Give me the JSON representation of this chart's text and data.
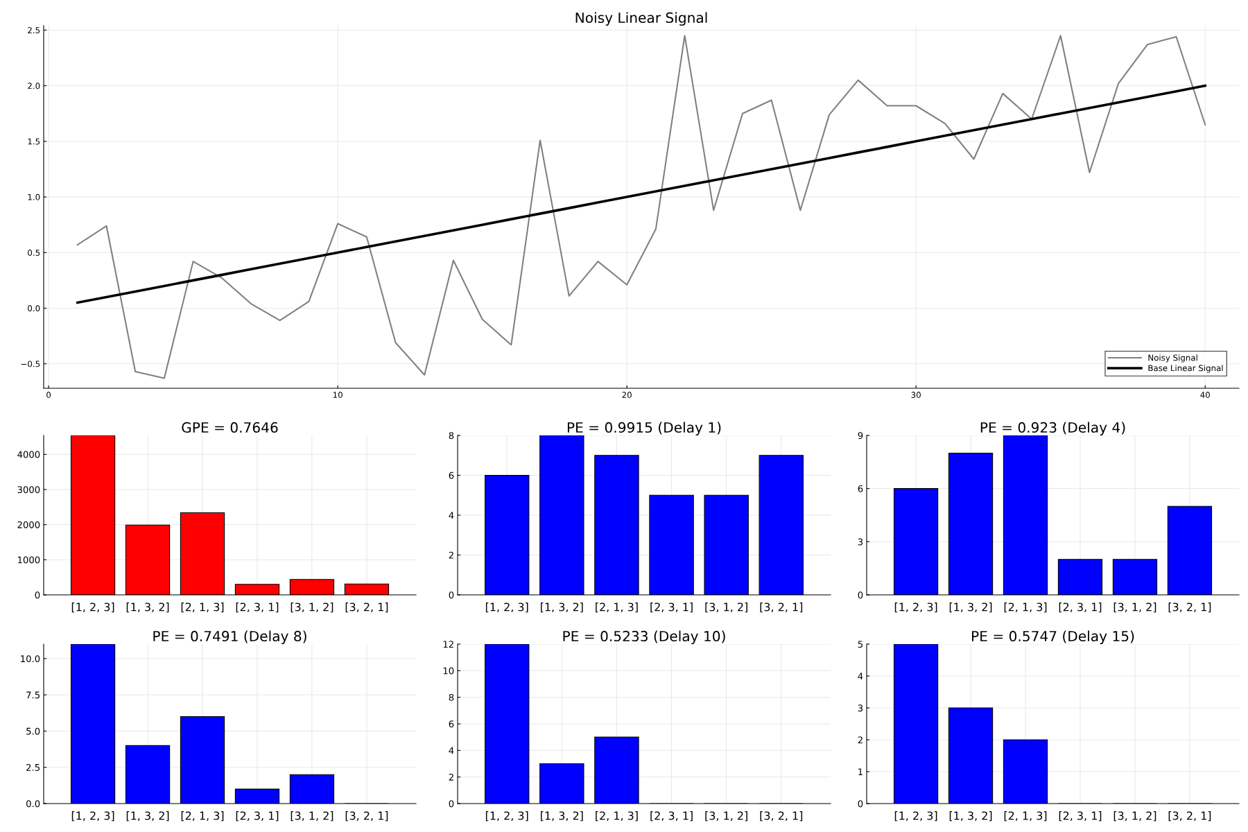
{
  "chart_data": [
    {
      "type": "line",
      "title": "Noisy Linear Signal",
      "x": [
        1,
        2,
        3,
        4,
        5,
        6,
        7,
        8,
        9,
        10,
        11,
        12,
        13,
        14,
        15,
        16,
        17,
        18,
        19,
        20,
        21,
        22,
        23,
        24,
        25,
        26,
        27,
        28,
        29,
        30,
        31,
        32,
        33,
        34,
        35,
        36,
        37,
        38,
        39,
        40
      ],
      "series": [
        {
          "name": "Noisy Signal",
          "color": "#808080",
          "values": [
            0.57,
            0.74,
            -0.57,
            -0.63,
            0.42,
            0.27,
            0.04,
            -0.11,
            0.06,
            0.76,
            0.64,
            -0.31,
            -0.6,
            0.43,
            -0.1,
            -0.33,
            1.51,
            0.11,
            0.42,
            0.21,
            0.71,
            2.45,
            0.88,
            1.75,
            1.87,
            0.88,
            1.74,
            2.05,
            1.82,
            1.82,
            1.66,
            1.34,
            1.93,
            1.7,
            2.45,
            1.22,
            2.02,
            2.37,
            2.44,
            1.65
          ]
        },
        {
          "name": "Base Linear Signal",
          "color": "#000000",
          "values": [
            0.05,
            0.1,
            0.15,
            0.2,
            0.25,
            0.3,
            0.35,
            0.4,
            0.45,
            0.5,
            0.55,
            0.6,
            0.65,
            0.7,
            0.75,
            0.8,
            0.85,
            0.9,
            0.95,
            1.0,
            1.05,
            1.1,
            1.15,
            1.2,
            1.25,
            1.3,
            1.35,
            1.4,
            1.45,
            1.5,
            1.55,
            1.6,
            1.65,
            1.7,
            1.75,
            1.8,
            1.85,
            1.9,
            1.95,
            2.0
          ]
        }
      ],
      "xlim": [
        -0.17,
        41.17
      ],
      "xticks": [
        0,
        10,
        20,
        30,
        40
      ],
      "ylim": [
        -0.72,
        2.54
      ],
      "yticks": [
        {
          "value": -0.5,
          "label": "−0.5"
        },
        {
          "value": 0,
          "label": "0.0"
        },
        {
          "value": 0.5,
          "label": "0.5"
        },
        {
          "value": 1,
          "label": "1.0"
        },
        {
          "value": 1.5,
          "label": "1.5"
        },
        {
          "value": 2,
          "label": "2.0"
        },
        {
          "value": 2.5,
          "label": "2.5"
        }
      ],
      "grid": true,
      "legend": "bottom right"
    },
    {
      "type": "bar",
      "title": "GPE = 0.7646",
      "categories": [
        "[1, 2, 3]",
        "[1, 3, 2]",
        "[2, 1, 3]",
        "[2, 3, 1]",
        "[3, 1, 2]",
        "[3, 2, 1]"
      ],
      "color": "#ff0000",
      "values": [
        4540,
        1990,
        2340,
        300,
        440,
        310
      ],
      "ylim": [
        0,
        4540
      ],
      "yticks": [
        0,
        1000,
        2000,
        3000,
        4000
      ],
      "grid": true
    },
    {
      "type": "bar",
      "title": "PE = 0.9915 (Delay 1)",
      "categories": [
        "[1, 2, 3]",
        "[1, 3, 2]",
        "[2, 1, 3]",
        "[2, 3, 1]",
        "[3, 1, 2]",
        "[3, 2, 1]"
      ],
      "color": "#0000ff",
      "values": [
        6,
        8,
        7,
        5,
        5,
        7
      ],
      "ylim": [
        0,
        8
      ],
      "yticks": [
        0,
        2,
        4,
        6,
        8
      ],
      "grid": true
    },
    {
      "type": "bar",
      "title": "PE = 0.923 (Delay 4)",
      "categories": [
        "[1, 2, 3]",
        "[1, 3, 2]",
        "[2, 1, 3]",
        "[2, 3, 1]",
        "[3, 1, 2]",
        "[3, 2, 1]"
      ],
      "color": "#0000ff",
      "values": [
        6,
        8,
        9,
        2,
        2,
        5
      ],
      "ylim": [
        0,
        9
      ],
      "yticks": [
        0,
        3,
        6,
        9
      ],
      "grid": true
    },
    {
      "type": "bar",
      "title": "PE = 0.7491 (Delay 8)",
      "categories": [
        "[1, 2, 3]",
        "[1, 3, 2]",
        "[2, 1, 3]",
        "[2, 3, 1]",
        "[3, 1, 2]",
        "[3, 2, 1]"
      ],
      "color": "#0000ff",
      "values": [
        11,
        4,
        6,
        1,
        2,
        0
      ],
      "ylim": [
        0,
        11
      ],
      "yticks": [
        {
          "value": 0,
          "label": "0.0"
        },
        {
          "value": 2.5,
          "label": "2.5"
        },
        {
          "value": 5,
          "label": "5.0"
        },
        {
          "value": 7.5,
          "label": "7.5"
        },
        {
          "value": 10,
          "label": "10.0"
        }
      ],
      "grid": true
    },
    {
      "type": "bar",
      "title": "PE = 0.5233 (Delay 10)",
      "categories": [
        "[1, 2, 3]",
        "[1, 3, 2]",
        "[2, 1, 3]",
        "[2, 3, 1]",
        "[3, 1, 2]",
        "[3, 2, 1]"
      ],
      "color": "#0000ff",
      "values": [
        12,
        3,
        5,
        0,
        0,
        0
      ],
      "ylim": [
        0,
        12
      ],
      "yticks": [
        0,
        2,
        4,
        6,
        8,
        10,
        12
      ],
      "grid": true
    },
    {
      "type": "bar",
      "title": "PE = 0.5747 (Delay 15)",
      "categories": [
        "[1, 2, 3]",
        "[1, 3, 2]",
        "[2, 1, 3]",
        "[2, 3, 1]",
        "[3, 1, 2]",
        "[3, 2, 1]"
      ],
      "color": "#0000ff",
      "values": [
        5,
        3,
        2,
        0,
        0,
        0
      ],
      "ylim": [
        0,
        5
      ],
      "yticks": [
        0,
        1,
        2,
        3,
        4,
        5
      ],
      "grid": true
    }
  ]
}
